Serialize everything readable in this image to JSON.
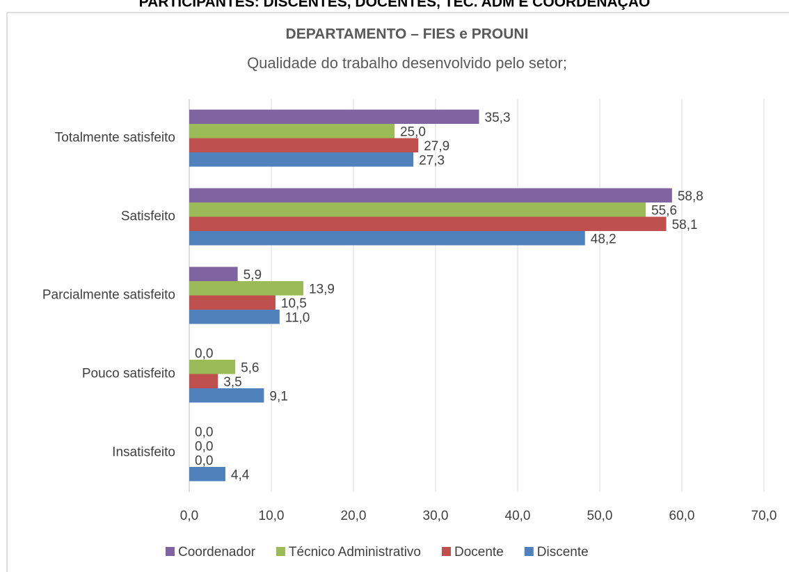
{
  "header": {
    "title": "PARTICIPANTES: DISCENTES, DOCENTES, TÉC. ADM E COORDENAÇÃO"
  },
  "chart_data": {
    "type": "barh",
    "title": "DEPARTAMENTO – FIES e PROUNI",
    "subtitle": "Qualidade do trabalho desenvolvido pelo setor;",
    "categories": [
      "Totalmente satisfeito",
      "Satisfeito",
      "Parcialmente satisfeito",
      "Pouco satisfeito",
      "Insatisfeito"
    ],
    "series": [
      {
        "name": "Coordenador",
        "color": "#8064a2",
        "values": [
          35.3,
          58.8,
          5.9,
          0.0,
          0.0
        ],
        "value_labels": [
          "35,3",
          "58,8",
          "5,9",
          "0,0",
          "0,0"
        ]
      },
      {
        "name": "Técnico Administrativo",
        "color": "#9bbb59",
        "values": [
          25.0,
          55.6,
          13.9,
          5.6,
          0.0
        ],
        "value_labels": [
          "25,0",
          "55,6",
          "13,9",
          "5,6",
          "0,0"
        ]
      },
      {
        "name": "Docente",
        "color": "#c0504d",
        "values": [
          27.9,
          58.1,
          10.5,
          3.5,
          0.0
        ],
        "value_labels": [
          "27,9",
          "58,1",
          "10,5",
          "3,5",
          "0,0"
        ]
      },
      {
        "name": "Discente",
        "color": "#4f81bd",
        "values": [
          27.3,
          48.2,
          11.0,
          9.1,
          4.4
        ],
        "value_labels": [
          "27,3",
          "48,2",
          "11,0",
          "9,1",
          "4,4"
        ]
      }
    ],
    "xlim": [
      0,
      70
    ],
    "xticks": [
      {
        "value": 0,
        "label": "0,0"
      },
      {
        "value": 10,
        "label": "10,0"
      },
      {
        "value": 20,
        "label": "20,0"
      },
      {
        "value": 30,
        "label": "30,0"
      },
      {
        "value": 40,
        "label": "40,0"
      },
      {
        "value": 50,
        "label": "50,0"
      },
      {
        "value": 60,
        "label": "60,0"
      },
      {
        "value": 70,
        "label": "70,0"
      }
    ],
    "grid": true,
    "legend": "bottom"
  }
}
